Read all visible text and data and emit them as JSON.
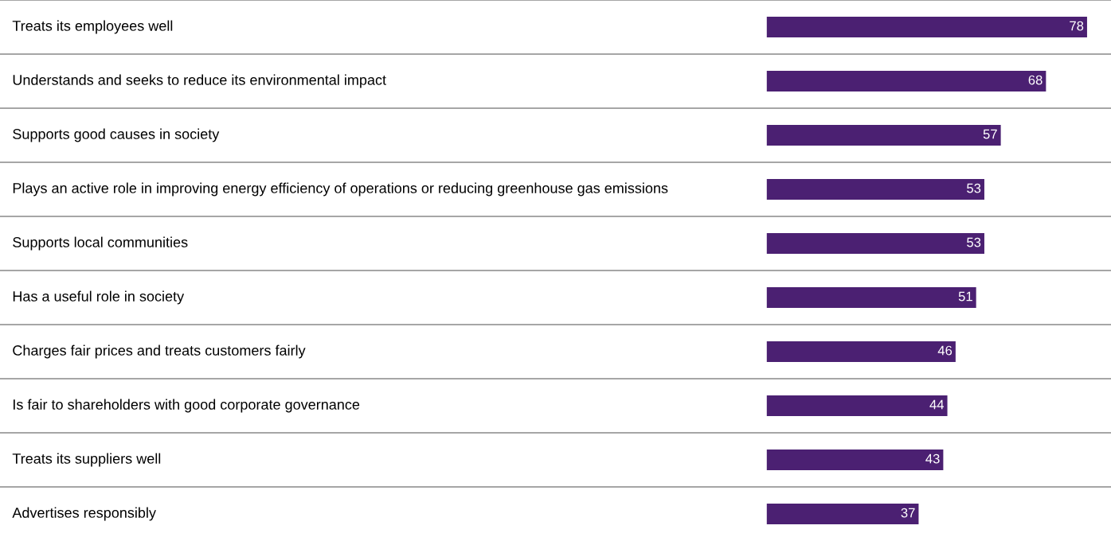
{
  "chart_data": {
    "type": "bar",
    "orientation": "horizontal",
    "categories": [
      "Treats its employees well",
      "Understands and seeks to reduce its environmental impact",
      "Supports good causes in society",
      "Plays an active role in improving energy efficiency of operations or reducing greenhouse gas emissions",
      "Supports local communities",
      "Has a useful role in society",
      "Charges fair prices and treats customers fairly",
      "Is fair to shareholders with good corporate governance",
      "Treats its suppliers well",
      "Advertises responsibly"
    ],
    "values": [
      78,
      68,
      57,
      53,
      53,
      51,
      46,
      44,
      43,
      37
    ],
    "color": "#4b2072",
    "data_labels": true
  }
}
